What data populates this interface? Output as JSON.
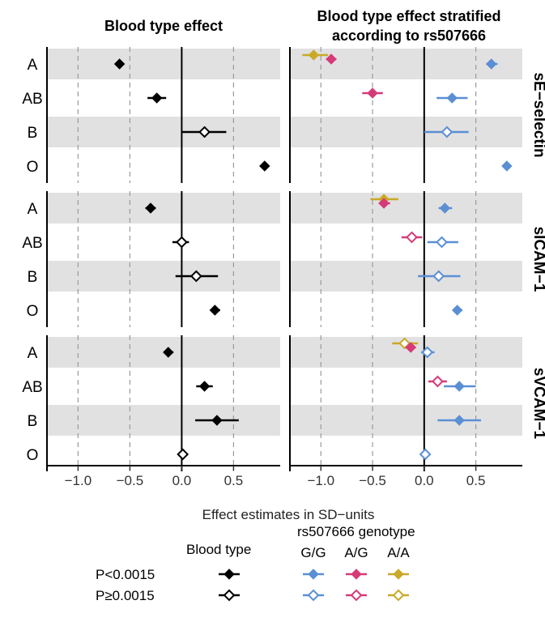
{
  "chart_data": {
    "type": "forest",
    "panel_titles": [
      "Blood type effect",
      "Blood type effect stratified\naccording to rs507666"
    ],
    "xlabel": "Effect estimates in SD−units",
    "xlim": [
      -1.3,
      0.95
    ],
    "xticks": [
      -1.0,
      -0.5,
      0.0,
      0.5
    ],
    "xtick_labels": [
      "−1.0",
      "−0.5",
      "0.0",
      "0.5"
    ],
    "reference_line": 0,
    "grid": "dashed vertical lines at -1.0, -0.5, 0.5",
    "categories": [
      "A",
      "AB",
      "B",
      "O"
    ],
    "rows": [
      {
        "label": "sE−selectin",
        "left": [
          {
            "cat": "A",
            "est": -0.6,
            "lo": -0.64,
            "hi": -0.56,
            "sig": true
          },
          {
            "cat": "AB",
            "est": -0.24,
            "lo": -0.33,
            "hi": -0.15,
            "sig": true
          },
          {
            "cat": "B",
            "est": 0.22,
            "lo": 0.0,
            "hi": 0.43,
            "sig": false
          },
          {
            "cat": "O",
            "est": 0.8,
            "lo": 0.76,
            "hi": 0.84,
            "sig": true
          }
        ],
        "right": [
          {
            "cat": "A",
            "genotype": "A/A",
            "est": -1.07,
            "lo": -1.18,
            "hi": -0.93,
            "sig": true
          },
          {
            "cat": "A",
            "genotype": "A/G",
            "est": -0.9,
            "lo": -0.95,
            "hi": -0.85,
            "sig": true
          },
          {
            "cat": "A",
            "genotype": "G/G",
            "est": 0.65,
            "lo": 0.6,
            "hi": 0.71,
            "sig": true
          },
          {
            "cat": "AB",
            "genotype": "A/G",
            "est": -0.5,
            "lo": -0.6,
            "hi": -0.4,
            "sig": true
          },
          {
            "cat": "AB",
            "genotype": "G/G",
            "est": 0.27,
            "lo": 0.12,
            "hi": 0.42,
            "sig": true
          },
          {
            "cat": "B",
            "genotype": "G/G",
            "est": 0.22,
            "lo": 0.0,
            "hi": 0.43,
            "sig": false
          },
          {
            "cat": "O",
            "genotype": "G/G",
            "est": 0.8,
            "lo": 0.76,
            "hi": 0.84,
            "sig": true
          }
        ]
      },
      {
        "label": "sICAM−1",
        "left": [
          {
            "cat": "A",
            "est": -0.3,
            "lo": -0.35,
            "hi": -0.25,
            "sig": true
          },
          {
            "cat": "AB",
            "est": 0.0,
            "lo": -0.09,
            "hi": 0.07,
            "sig": false
          },
          {
            "cat": "B",
            "est": 0.14,
            "lo": -0.06,
            "hi": 0.35,
            "sig": false
          },
          {
            "cat": "O",
            "est": 0.32,
            "lo": 0.28,
            "hi": 0.37,
            "sig": true
          }
        ],
        "right": [
          {
            "cat": "A",
            "genotype": "A/A",
            "est": -0.39,
            "lo": -0.52,
            "hi": -0.25,
            "sig": true
          },
          {
            "cat": "A",
            "genotype": "A/G",
            "est": -0.39,
            "lo": -0.44,
            "hi": -0.33,
            "sig": true
          },
          {
            "cat": "A",
            "genotype": "G/G",
            "est": 0.2,
            "lo": 0.14,
            "hi": 0.27,
            "sig": true
          },
          {
            "cat": "AB",
            "genotype": "A/G",
            "est": -0.12,
            "lo": -0.22,
            "hi": -0.02,
            "sig": false
          },
          {
            "cat": "AB",
            "genotype": "G/G",
            "est": 0.17,
            "lo": 0.03,
            "hi": 0.33,
            "sig": false
          },
          {
            "cat": "B",
            "genotype": "G/G",
            "est": 0.14,
            "lo": -0.06,
            "hi": 0.35,
            "sig": false
          },
          {
            "cat": "O",
            "genotype": "G/G",
            "est": 0.32,
            "lo": 0.28,
            "hi": 0.37,
            "sig": true
          }
        ]
      },
      {
        "label": "sVCAM−1",
        "left": [
          {
            "cat": "A",
            "est": -0.13,
            "lo": -0.17,
            "hi": -0.08,
            "sig": true
          },
          {
            "cat": "AB",
            "est": 0.22,
            "lo": 0.14,
            "hi": 0.3,
            "sig": true
          },
          {
            "cat": "B",
            "est": 0.34,
            "lo": 0.13,
            "hi": 0.55,
            "sig": true
          },
          {
            "cat": "O",
            "est": 0.01,
            "lo": 0.0,
            "hi": 0.02,
            "sig": false
          }
        ],
        "right": [
          {
            "cat": "A",
            "genotype": "A/A",
            "est": -0.19,
            "lo": -0.31,
            "hi": -0.06,
            "sig": false
          },
          {
            "cat": "A",
            "genotype": "A/G",
            "est": -0.13,
            "lo": -0.18,
            "hi": -0.08,
            "sig": true
          },
          {
            "cat": "A",
            "genotype": "G/G",
            "est": 0.03,
            "lo": -0.03,
            "hi": 0.1,
            "sig": false
          },
          {
            "cat": "AB",
            "genotype": "A/G",
            "est": 0.13,
            "lo": 0.04,
            "hi": 0.22,
            "sig": false
          },
          {
            "cat": "AB",
            "genotype": "G/G",
            "est": 0.34,
            "lo": 0.19,
            "hi": 0.5,
            "sig": true
          },
          {
            "cat": "B",
            "genotype": "G/G",
            "est": 0.34,
            "lo": 0.13,
            "hi": 0.55,
            "sig": true
          },
          {
            "cat": "O",
            "genotype": "G/G",
            "est": 0.01,
            "lo": 0.0,
            "hi": 0.02,
            "sig": false
          }
        ]
      }
    ],
    "legend": {
      "placement": "bottom",
      "blood_type_title": "Blood type",
      "genotype_title": "rs507666 genotype",
      "genotypes": [
        "G/G",
        "A/G",
        "A/A"
      ],
      "rows": [
        "P<0.0015",
        "P≥0.0015"
      ]
    },
    "colors": {
      "blood": "#000000",
      "G/G": "#5b8fd4",
      "A/G": "#d63a78",
      "A/A": "#c9a928",
      "band": "#e1e1e1"
    }
  }
}
